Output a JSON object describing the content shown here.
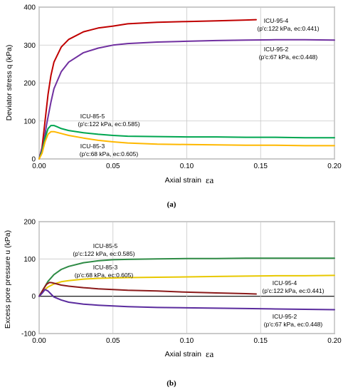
{
  "chart_data": [
    {
      "type": "line",
      "panel": "(a)",
      "ylabel": "Deviator stress  q (kPa)",
      "xlabel_text": "Axial strain",
      "xlabel_symbol": "εa",
      "xlim": [
        0,
        0.2
      ],
      "ylim": [
        0,
        400
      ],
      "xticks": [
        "0.00",
        "0.05",
        "0.10",
        "0.15",
        "0.20"
      ],
      "yticks": [
        "0",
        "100",
        "200",
        "300",
        "400"
      ],
      "series": [
        {
          "name": "ICU-95-4",
          "label_line2": "(p'c:122 kPa, ec:0.441)",
          "color": "#c00000",
          "x": [
            0,
            0.002,
            0.004,
            0.006,
            0.008,
            0.01,
            0.015,
            0.02,
            0.03,
            0.04,
            0.05,
            0.06,
            0.08,
            0.1,
            0.12,
            0.14,
            0.147
          ],
          "y": [
            0,
            30,
            100,
            170,
            220,
            255,
            295,
            315,
            335,
            345,
            350,
            356,
            360,
            362,
            364,
            366,
            367
          ]
        },
        {
          "name": "ICU-95-2",
          "label_line2": "(p'c:67 kPa, ec:0.448)",
          "color": "#7030a0",
          "x": [
            0,
            0.003,
            0.005,
            0.008,
            0.01,
            0.015,
            0.02,
            0.03,
            0.04,
            0.05,
            0.06,
            0.08,
            0.1,
            0.12,
            0.14,
            0.16,
            0.18,
            0.2
          ],
          "y": [
            0,
            40,
            90,
            150,
            185,
            230,
            255,
            280,
            292,
            300,
            304,
            308,
            310,
            312,
            313,
            314,
            314,
            313
          ]
        },
        {
          "name": "ICU-85-5",
          "label_line2": "(p'c:122 kPa, ec:0.585)",
          "color": "#00a650",
          "x": [
            0,
            0.002,
            0.004,
            0.006,
            0.008,
            0.01,
            0.012,
            0.015,
            0.02,
            0.03,
            0.04,
            0.05,
            0.06,
            0.08,
            0.1,
            0.12,
            0.14,
            0.16,
            0.18,
            0.2
          ],
          "y": [
            0,
            20,
            55,
            80,
            88,
            88,
            85,
            80,
            75,
            69,
            65,
            62,
            60,
            59,
            58,
            58,
            57,
            57,
            56,
            56
          ]
        },
        {
          "name": "ICU-85-3",
          "label_line2": "(p'c:68 kPa, ec:0.605)",
          "color": "#ffb800",
          "x": [
            0,
            0.002,
            0.004,
            0.006,
            0.008,
            0.01,
            0.012,
            0.015,
            0.02,
            0.03,
            0.04,
            0.05,
            0.06,
            0.08,
            0.1,
            0.12,
            0.14,
            0.16,
            0.18,
            0.2
          ],
          "y": [
            0,
            15,
            45,
            65,
            72,
            72,
            70,
            67,
            62,
            55,
            49,
            45,
            42,
            39,
            38,
            37,
            36,
            36,
            35,
            35
          ]
        }
      ]
    },
    {
      "type": "line",
      "panel": "(b)",
      "ylabel": "Excess pore pressure u (kPa)",
      "xlabel_text": "Axial strain",
      "xlabel_symbol": "εa",
      "xlim": [
        0,
        0.2
      ],
      "ylim": [
        -100,
        200
      ],
      "xticks": [
        "0.00",
        "0.05",
        "0.10",
        "0.15",
        "0.20"
      ],
      "yticks": [
        "-100",
        "0",
        "100",
        "200"
      ],
      "series": [
        {
          "name": "ICU-85-5",
          "label_line2": "(p'c:122 kPa, ec:0.585)",
          "color": "#2e8b45",
          "x": [
            0,
            0.003,
            0.006,
            0.01,
            0.015,
            0.02,
            0.03,
            0.04,
            0.05,
            0.06,
            0.08,
            0.1,
            0.12,
            0.14,
            0.16,
            0.18,
            0.2
          ],
          "y": [
            0,
            20,
            40,
            58,
            72,
            80,
            90,
            95,
            98,
            99,
            100,
            101,
            101,
            102,
            102,
            102,
            102
          ]
        },
        {
          "name": "ICU-85-3",
          "label_line2": "(p'c:68 kPa, ec:0.605)",
          "color": "#e8c800",
          "x": [
            0,
            0.003,
            0.006,
            0.01,
            0.015,
            0.02,
            0.03,
            0.04,
            0.05,
            0.06,
            0.08,
            0.1,
            0.12,
            0.14,
            0.16,
            0.18,
            0.2
          ],
          "y": [
            0,
            15,
            25,
            33,
            39,
            42,
            46,
            48,
            49,
            50,
            51,
            52,
            53,
            54,
            55,
            55,
            56
          ]
        },
        {
          "name": "ICU-95-4",
          "label_line2": "(p'c:122 kPa, ec:0.441)",
          "color": "#8b1a1a",
          "x": [
            0,
            0.003,
            0.005,
            0.007,
            0.009,
            0.012,
            0.015,
            0.02,
            0.03,
            0.04,
            0.05,
            0.06,
            0.08,
            0.1,
            0.12,
            0.14,
            0.147
          ],
          "y": [
            0,
            20,
            32,
            37,
            36,
            33,
            30,
            27,
            23,
            20,
            18,
            16,
            14,
            11,
            9,
            7,
            6
          ]
        },
        {
          "name": "ICU-95-2",
          "label_line2": "(p'c:67 kPa, ec:0.448)",
          "color": "#5b2c9e",
          "x": [
            0,
            0.002,
            0.004,
            0.006,
            0.008,
            0.01,
            0.015,
            0.02,
            0.03,
            0.04,
            0.05,
            0.06,
            0.08,
            0.1,
            0.12,
            0.14,
            0.16,
            0.18,
            0.2
          ],
          "y": [
            0,
            8,
            18,
            14,
            6,
            -2,
            -10,
            -16,
            -21,
            -24,
            -26,
            -28,
            -30,
            -31,
            -32,
            -33,
            -34,
            -35,
            -36
          ]
        }
      ]
    }
  ]
}
